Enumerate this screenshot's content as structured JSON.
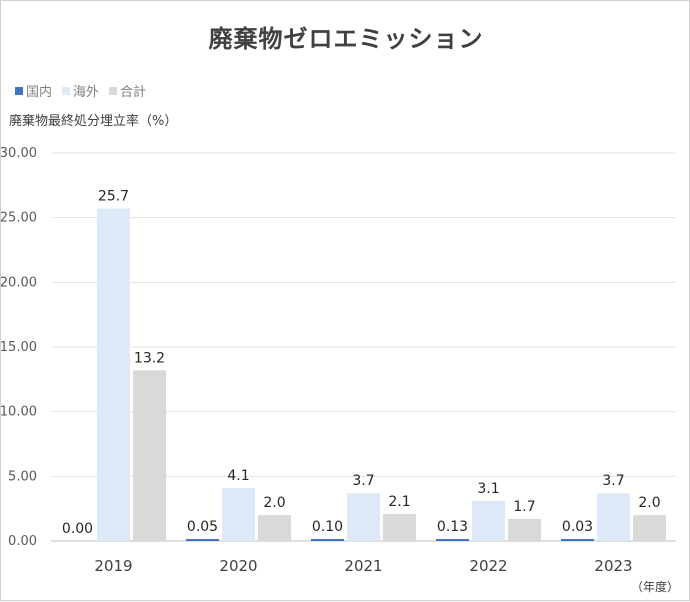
{
  "chart_data": {
    "type": "bar",
    "title": "廃棄物ゼロエミッション",
    "ylabel": "廃棄物最終処分埋立率（%）",
    "xlabel": "（年度）",
    "categories": [
      "2019",
      "2020",
      "2021",
      "2022",
      "2023"
    ],
    "series": [
      {
        "name": "国内",
        "color": "#4472c4",
        "values": [
          0.0,
          0.05,
          0.1,
          0.13,
          0.03
        ],
        "labels": [
          "0.00",
          "0.05",
          "0.10",
          "0.13",
          "0.03"
        ]
      },
      {
        "name": "海外",
        "color": "#dde9f6",
        "values": [
          25.7,
          4.1,
          3.7,
          3.1,
          3.7
        ],
        "labels": [
          "25.7",
          "4.1",
          "3.7",
          "3.1",
          "3.7"
        ]
      },
      {
        "name": "合計",
        "color": "#d9d9d9",
        "values": [
          13.2,
          2.0,
          2.1,
          1.7,
          2.0
        ],
        "labels": [
          "13.2",
          "2.0",
          "2.1",
          "1.7",
          "2.0"
        ]
      }
    ],
    "ylim": [
      0,
      30
    ],
    "yticks": [
      0,
      5,
      10,
      15,
      20,
      25,
      30
    ],
    "ytick_labels": [
      "0.00",
      "5.00",
      "10.00",
      "15.00",
      "20.00",
      "25.00",
      "30.00"
    ],
    "grid": true,
    "legend_position": "top-left"
  }
}
